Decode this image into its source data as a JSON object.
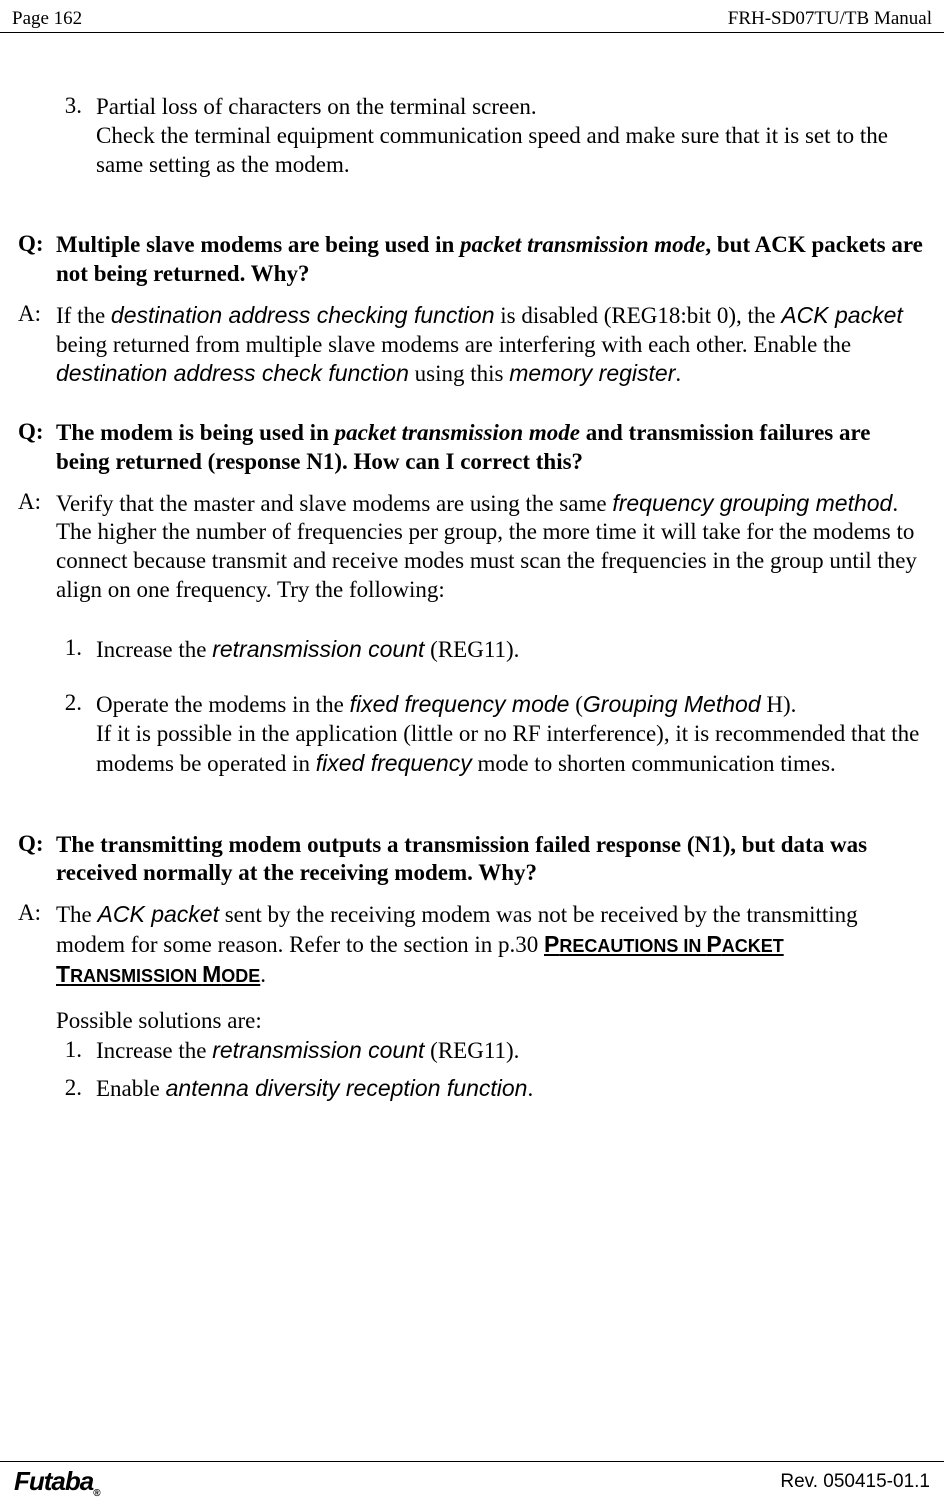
{
  "header": {
    "left": "Page  162",
    "right": "FRH-SD07TU/TB Manual"
  },
  "item3": {
    "num": "3.",
    "line1": "Partial loss of characters on the terminal screen.",
    "line2": "Check the terminal equipment communication speed and make sure that it is set to the same setting as the modem."
  },
  "qa1": {
    "q_label": "Q:",
    "q_pre": "Multiple slave modems are being used in ",
    "q_it": "packet transmission mode",
    "q_post": ", but ACK packets are not being returned. Why?",
    "a_label": "A:",
    "a_t1": "If the ",
    "a_it1": "destination address checking function",
    "a_t2": " is disabled (REG18:bit 0), the ",
    "a_it2": "ACK packet",
    "a_t3": " being returned from multiple slave modems are interfering with each other. Enable the ",
    "a_it3": "destination address check function",
    "a_t4": " using this ",
    "a_it4": "memory register",
    "a_t5": "."
  },
  "qa2": {
    "q_label": "Q:",
    "q_pre": "The modem is being used in ",
    "q_it": "packet transmission mode",
    "q_post": " and transmission failures are being returned (response N1). How can I correct this?",
    "a_label": "A:",
    "a_t1": "Verify that the master and slave modems are using the same ",
    "a_it1": "frequency grouping method",
    "a_t2": ". The higher the number of frequencies per group, the more time it will take for the modems to connect because transmit and receive modes must scan the frequencies in the group until they align on one frequency. Try the following:",
    "i1_num": "1.",
    "i1_t1": "Increase the ",
    "i1_it": "retransmission count",
    "i1_t2": " (REG11).",
    "i2_num": "2.",
    "i2_t1": "Operate the modems in the ",
    "i2_it1": "fixed frequency mode",
    "i2_t2": " (",
    "i2_it2": "Grouping Method",
    "i2_t3": " H).",
    "i2_line2a": "If it is possible in the application (little or no RF interference), it is recommended that the modems be operated in ",
    "i2_line2_it": "fixed frequency",
    "i2_line2b": " mode to shorten communication times."
  },
  "qa3": {
    "q_label": "Q:",
    "q_text": "The transmitting modem outputs a transmission failed response (N1), but data was received normally at the receiving modem. Why?",
    "a_label": "A:",
    "a_t1": "The ",
    "a_it1": "ACK packet",
    "a_t2": " sent by the receiving modem was not be received by the transmitting modem for some reason. Refer to the section in p.30 ",
    "a_sc1": "P",
    "a_sc2": "RECAUTIONS IN ",
    "a_sc3": "P",
    "a_sc4": "ACKET ",
    "a_sc5": "T",
    "a_sc6": "RANSMISSION ",
    "a_sc7": "M",
    "a_sc8": "ODE",
    "a_t3": ".",
    "sol_intro": "Possible solutions are:",
    "s1_num": "1.",
    "s1_t1": "Increase the ",
    "s1_it": "retransmission count",
    "s1_t2": " (REG11).",
    "s2_num": "2.",
    "s2_t1": "Enable ",
    "s2_it": "antenna diversity reception function",
    "s2_t2": "."
  },
  "footer": {
    "logo": "Futaba",
    "reg": "®",
    "rev": "Rev. 050415-01.1"
  }
}
